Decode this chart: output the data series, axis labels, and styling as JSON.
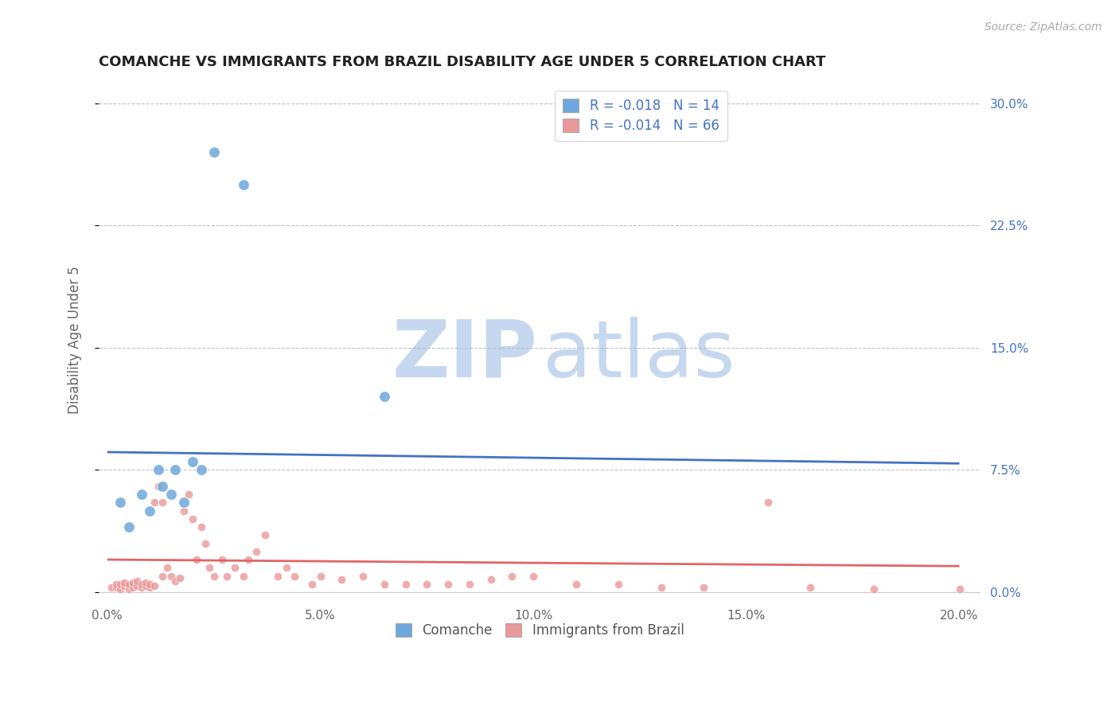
{
  "title": "COMANCHE VS IMMIGRANTS FROM BRAZIL DISABILITY AGE UNDER 5 CORRELATION CHART",
  "source": "Source: ZipAtlas.com",
  "ylabel": "Disability Age Under 5",
  "xlabel_ticks": [
    "0.0%",
    "5.0%",
    "10.0%",
    "15.0%",
    "20.0%"
  ],
  "xlabel_vals": [
    0.0,
    0.05,
    0.1,
    0.15,
    0.2
  ],
  "ylabel_ticks": [
    "0.0%",
    "7.5%",
    "15.0%",
    "22.5%",
    "30.0%"
  ],
  "ylabel_vals": [
    0.0,
    0.075,
    0.15,
    0.225,
    0.3
  ],
  "xlim": [
    -0.002,
    0.205
  ],
  "ylim": [
    -0.005,
    0.315
  ],
  "comanche_scatter_x": [
    0.003,
    0.005,
    0.008,
    0.01,
    0.012,
    0.013,
    0.015,
    0.016,
    0.018,
    0.02,
    0.022,
    0.025,
    0.032,
    0.065
  ],
  "comanche_scatter_y": [
    0.055,
    0.04,
    0.06,
    0.05,
    0.075,
    0.065,
    0.06,
    0.075,
    0.055,
    0.08,
    0.075,
    0.27,
    0.25,
    0.12
  ],
  "brazil_scatter_x": [
    0.001,
    0.002,
    0.002,
    0.003,
    0.003,
    0.004,
    0.004,
    0.005,
    0.005,
    0.006,
    0.006,
    0.007,
    0.007,
    0.008,
    0.008,
    0.009,
    0.009,
    0.01,
    0.01,
    0.011,
    0.011,
    0.012,
    0.013,
    0.013,
    0.014,
    0.015,
    0.016,
    0.017,
    0.018,
    0.019,
    0.02,
    0.021,
    0.022,
    0.023,
    0.024,
    0.025,
    0.027,
    0.028,
    0.03,
    0.032,
    0.033,
    0.035,
    0.037,
    0.04,
    0.042,
    0.044,
    0.048,
    0.05,
    0.055,
    0.06,
    0.065,
    0.07,
    0.075,
    0.08,
    0.085,
    0.09,
    0.095,
    0.1,
    0.11,
    0.12,
    0.13,
    0.14,
    0.155,
    0.165,
    0.18,
    0.2
  ],
  "brazil_scatter_y": [
    0.003,
    0.003,
    0.005,
    0.002,
    0.005,
    0.004,
    0.006,
    0.002,
    0.005,
    0.003,
    0.006,
    0.004,
    0.007,
    0.003,
    0.005,
    0.004,
    0.006,
    0.003,
    0.005,
    0.004,
    0.055,
    0.065,
    0.01,
    0.055,
    0.015,
    0.01,
    0.007,
    0.009,
    0.05,
    0.06,
    0.045,
    0.02,
    0.04,
    0.03,
    0.015,
    0.01,
    0.02,
    0.01,
    0.015,
    0.01,
    0.02,
    0.025,
    0.035,
    0.01,
    0.015,
    0.01,
    0.005,
    0.01,
    0.008,
    0.01,
    0.005,
    0.005,
    0.005,
    0.005,
    0.005,
    0.008,
    0.01,
    0.01,
    0.005,
    0.005,
    0.003,
    0.003,
    0.055,
    0.003,
    0.002,
    0.002
  ],
  "comanche_line_x": [
    0.0,
    0.2
  ],
  "comanche_line_y": [
    0.086,
    0.079
  ],
  "brazil_line_x": [
    0.0,
    0.2
  ],
  "brazil_line_y": [
    0.02,
    0.016
  ],
  "scatter_size_comanche": 100,
  "scatter_size_brazil": 55,
  "comanche_color": "#6fa8dc",
  "brazil_color": "#ea9999",
  "comanche_line_color": "#4472c4",
  "brazil_line_color": "#e06666",
  "grid_color": "#c0c0c0",
  "right_tick_color": "#4472c4",
  "watermark_zip_color": "#c5d8ef",
  "watermark_atlas_color": "#c5d8ef",
  "background_color": "#ffffff",
  "legend_R_color": "#4472c4",
  "legend_N_color": "#4472c4",
  "comanche_R": "-0.018",
  "comanche_N": "14",
  "brazil_R": "-0.014",
  "brazil_N": "66"
}
